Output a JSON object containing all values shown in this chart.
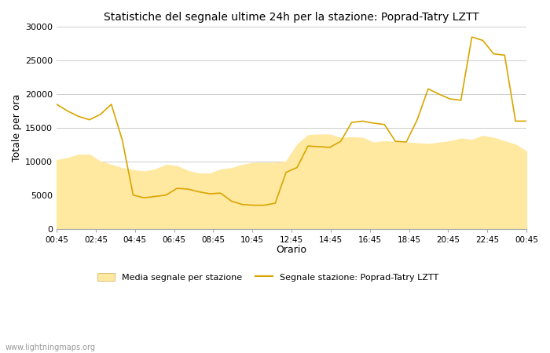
{
  "title": "Statistiche del segnale ultime 24h per la stazione: Poprad-Tatry LZTT",
  "xlabel": "Orario",
  "ylabel": "Totale per ora",
  "watermark": "www.lightningmaps.org",
  "legend_media": "Media segnale per stazione",
  "legend_signal": "Segnale stazione: Poprad-Tatry LZTT",
  "x_labels": [
    "00:45",
    "02:45",
    "04:45",
    "06:45",
    "08:45",
    "10:45",
    "12:45",
    "14:45",
    "16:45",
    "18:45",
    "20:45",
    "22:45",
    "00:45"
  ],
  "ylim": [
    0,
    30000
  ],
  "yticks": [
    0,
    5000,
    10000,
    15000,
    20000,
    25000,
    30000
  ],
  "line_color": "#DAA500",
  "fill_color": "#FFE8A0",
  "background_color": "#FFFFFF",
  "grid_color": "#CCCCCC",
  "signal_y": [
    18500,
    17500,
    16700,
    16200,
    17000,
    18500,
    13200,
    5000,
    4600,
    4800,
    5000,
    6000,
    5900,
    5500,
    5200,
    5300,
    4100,
    3600,
    3500,
    3500,
    3800,
    8400,
    9100,
    12300,
    12200,
    12100,
    13000,
    15800,
    16000,
    15700,
    15500,
    13000,
    12900,
    16200,
    20800,
    20000,
    19300,
    19100,
    28500,
    28000,
    26000,
    25800,
    16000,
    16000
  ],
  "media_y": [
    10200,
    10500,
    11000,
    11000,
    10000,
    9500,
    9000,
    8700,
    8500,
    8800,
    9500,
    9300,
    8600,
    8200,
    8200,
    8800,
    9000,
    9500,
    9800,
    9800,
    9800,
    10000,
    12500,
    13900,
    14000,
    14000,
    13500,
    13600,
    13500,
    12800,
    13000,
    12900,
    12800,
    12700,
    12600,
    12800,
    13000,
    13400,
    13200,
    13800,
    13500,
    13000,
    12500,
    11500
  ]
}
